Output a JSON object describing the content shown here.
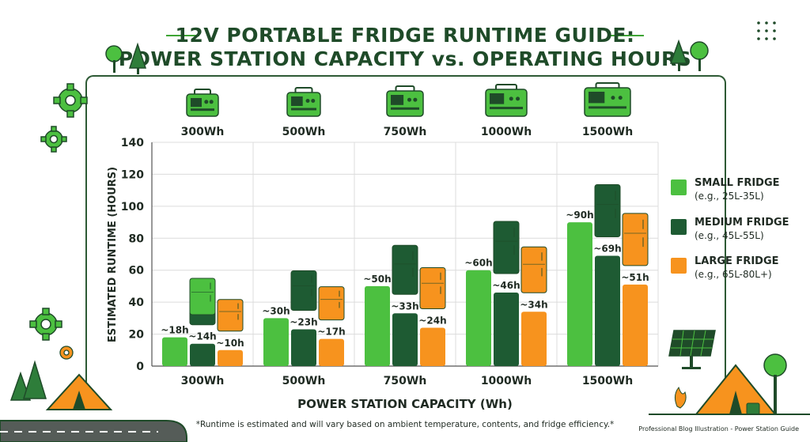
{
  "header": {
    "title_line1": "12V PORTABLE FRIDGE RUNTIME GUIDE:",
    "title_line2": "POWER STATION CAPACITY vs. OPERATING HOURS"
  },
  "colors": {
    "small": "#4cc040",
    "medium": "#1e5b33",
    "large": "#f7931e",
    "dark_green": "#1f4b29",
    "accent_green": "#3fa535"
  },
  "chart_data": {
    "type": "bar",
    "categories": [
      "300Wh",
      "500Wh",
      "750Wh",
      "1000Wh",
      "1500Wh"
    ],
    "top_labels": [
      "300Wh",
      "500Wh",
      "750Wh",
      "1000Wh",
      "1500Wh"
    ],
    "series": [
      {
        "name": "SMALL FRIDGE",
        "values": [
          18,
          30,
          50,
          60,
          90
        ],
        "labels": [
          "~18h",
          "~30h",
          "~50h",
          "~60h",
          "~90h"
        ]
      },
      {
        "name": "MEDIUM FRIDGE",
        "values": [
          14,
          23,
          33,
          46,
          69
        ],
        "labels": [
          "~14h",
          "~23h",
          "~33h",
          "~46h",
          "~69h"
        ]
      },
      {
        "name": "LARGE FRIDGE",
        "values": [
          10,
          17,
          24,
          34,
          51
        ],
        "labels": [
          "~10h",
          "~17h",
          "~24h",
          "~34h",
          "~51h"
        ]
      }
    ],
    "xlabel": "POWER STATION CAPACITY (Wh)",
    "ylabel": "ESTIMATED RUNTIME (HOURS)",
    "ylim": [
      0,
      140
    ],
    "yticks": [
      0,
      20,
      40,
      60,
      80,
      100,
      120,
      140
    ],
    "grid": true,
    "legend_position": "right"
  },
  "legend": [
    {
      "name": "SMALL FRIDGE",
      "example": "(e.g., 25L-35L)"
    },
    {
      "name": "MEDIUM FRIDGE",
      "example": "(e.g., 45L-55L)"
    },
    {
      "name": "LARGE FRIDGE",
      "example": "(e.g., 65L-80L+)"
    }
  ],
  "footnote": "*Runtime is estimated and will vary based on ambient temperature, contents, and fridge efficiency.*",
  "credit": "Professional Blog Illustration - Power Station Guide"
}
